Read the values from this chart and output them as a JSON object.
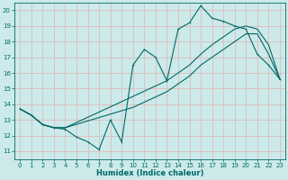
{
  "xlabel": "Humidex (Indice chaleur)",
  "bg_color": "#cceaea",
  "grid_color": "#ddbbbb",
  "line_color": "#006868",
  "xlim": [
    -0.5,
    23.5
  ],
  "ylim": [
    10.5,
    20.5
  ],
  "xticks": [
    0,
    1,
    2,
    3,
    4,
    5,
    6,
    7,
    8,
    9,
    10,
    11,
    12,
    13,
    14,
    15,
    16,
    17,
    18,
    19,
    20,
    21,
    22,
    23
  ],
  "yticks": [
    11,
    12,
    13,
    14,
    15,
    16,
    17,
    18,
    19,
    20
  ],
  "line1_x": [
    0,
    1,
    2,
    3,
    4,
    5,
    6,
    7,
    8,
    9,
    10,
    11,
    12,
    13,
    14,
    15,
    16,
    17,
    18,
    19,
    20,
    21,
    22,
    23
  ],
  "line1_y": [
    13.7,
    13.3,
    12.7,
    12.5,
    12.4,
    11.9,
    11.6,
    11.1,
    13.0,
    11.6,
    16.5,
    17.5,
    17.0,
    15.5,
    18.8,
    19.2,
    20.3,
    19.5,
    19.3,
    19.0,
    18.8,
    17.2,
    16.5,
    15.6
  ],
  "line2_x": [
    0,
    1,
    2,
    3,
    4,
    10,
    13,
    15,
    16,
    17,
    18,
    19,
    20,
    21,
    22,
    23
  ],
  "line2_y": [
    13.7,
    13.3,
    12.7,
    12.5,
    12.5,
    14.5,
    15.5,
    16.5,
    17.2,
    17.8,
    18.3,
    18.8,
    19.0,
    18.8,
    17.8,
    15.6
  ],
  "line3_x": [
    0,
    1,
    2,
    3,
    4,
    10,
    13,
    15,
    16,
    17,
    18,
    19,
    20,
    21,
    22,
    23
  ],
  "line3_y": [
    13.7,
    13.3,
    12.7,
    12.5,
    12.5,
    13.8,
    14.8,
    15.8,
    16.5,
    17.0,
    17.5,
    18.0,
    18.5,
    18.5,
    17.2,
    15.6
  ]
}
